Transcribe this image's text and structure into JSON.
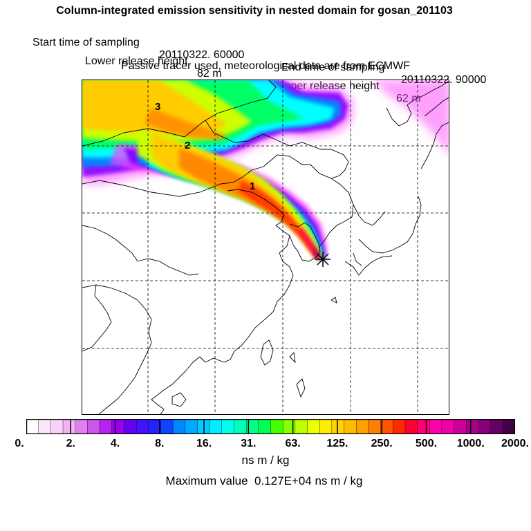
{
  "header": {
    "title": "Column-integrated emission sensitivity in nested domain for gosan_201103",
    "start_label": "Start time of sampling",
    "start_value": "20110322. 60000",
    "end_label": "End time of sampling",
    "end_value": "20110322. 90000",
    "lower_label": "Lower release height",
    "lower_value": "82 m",
    "upper_label": "Upper release height",
    "upper_value": "62 m",
    "note": "Passive tracer used, meteorological data are from ECMWF"
  },
  "map": {
    "day_labels": [
      "1",
      "2",
      "3"
    ],
    "receptor_icon": "asterisk-icon",
    "plume_colors": [
      "#ff44ff",
      "#8800ff",
      "#0088ff",
      "#00ffff",
      "#00ff66",
      "#ccff00",
      "#ffcc00",
      "#ff8800",
      "#ff3300",
      "#ff0066",
      "#aa0066"
    ]
  },
  "colorbar": {
    "tick_labels": [
      "0.",
      "2.",
      "4.",
      "8.",
      "16.",
      "31.",
      "63.",
      "125.",
      "250.",
      "500.",
      "1000.",
      "2000."
    ],
    "colors": [
      "#ffffff",
      "#fbe6fb",
      "#f8d2f8",
      "#f2b4f2",
      "#e080f0",
      "#cc55ee",
      "#b822ee",
      "#9900ee",
      "#6600ee",
      "#4411ff",
      "#2222ff",
      "#1144ff",
      "#0088ff",
      "#00a8ff",
      "#00ccff",
      "#00eeff",
      "#00ffee",
      "#00ffbb",
      "#00ff88",
      "#00ff55",
      "#44ff00",
      "#88ff00",
      "#bbff00",
      "#eeff00",
      "#ffee00",
      "#ffd400",
      "#ffbb00",
      "#ffa000",
      "#ff8000",
      "#ff5500",
      "#ff2a00",
      "#ff0033",
      "#ff0077",
      "#ff00aa",
      "#ee00aa",
      "#cc0099",
      "#aa0088",
      "#880077",
      "#660066",
      "#440044"
    ],
    "units": "ns m / kg",
    "max_label": "Maximum value",
    "max_value": "0.127E+04 ns m / kg"
  }
}
